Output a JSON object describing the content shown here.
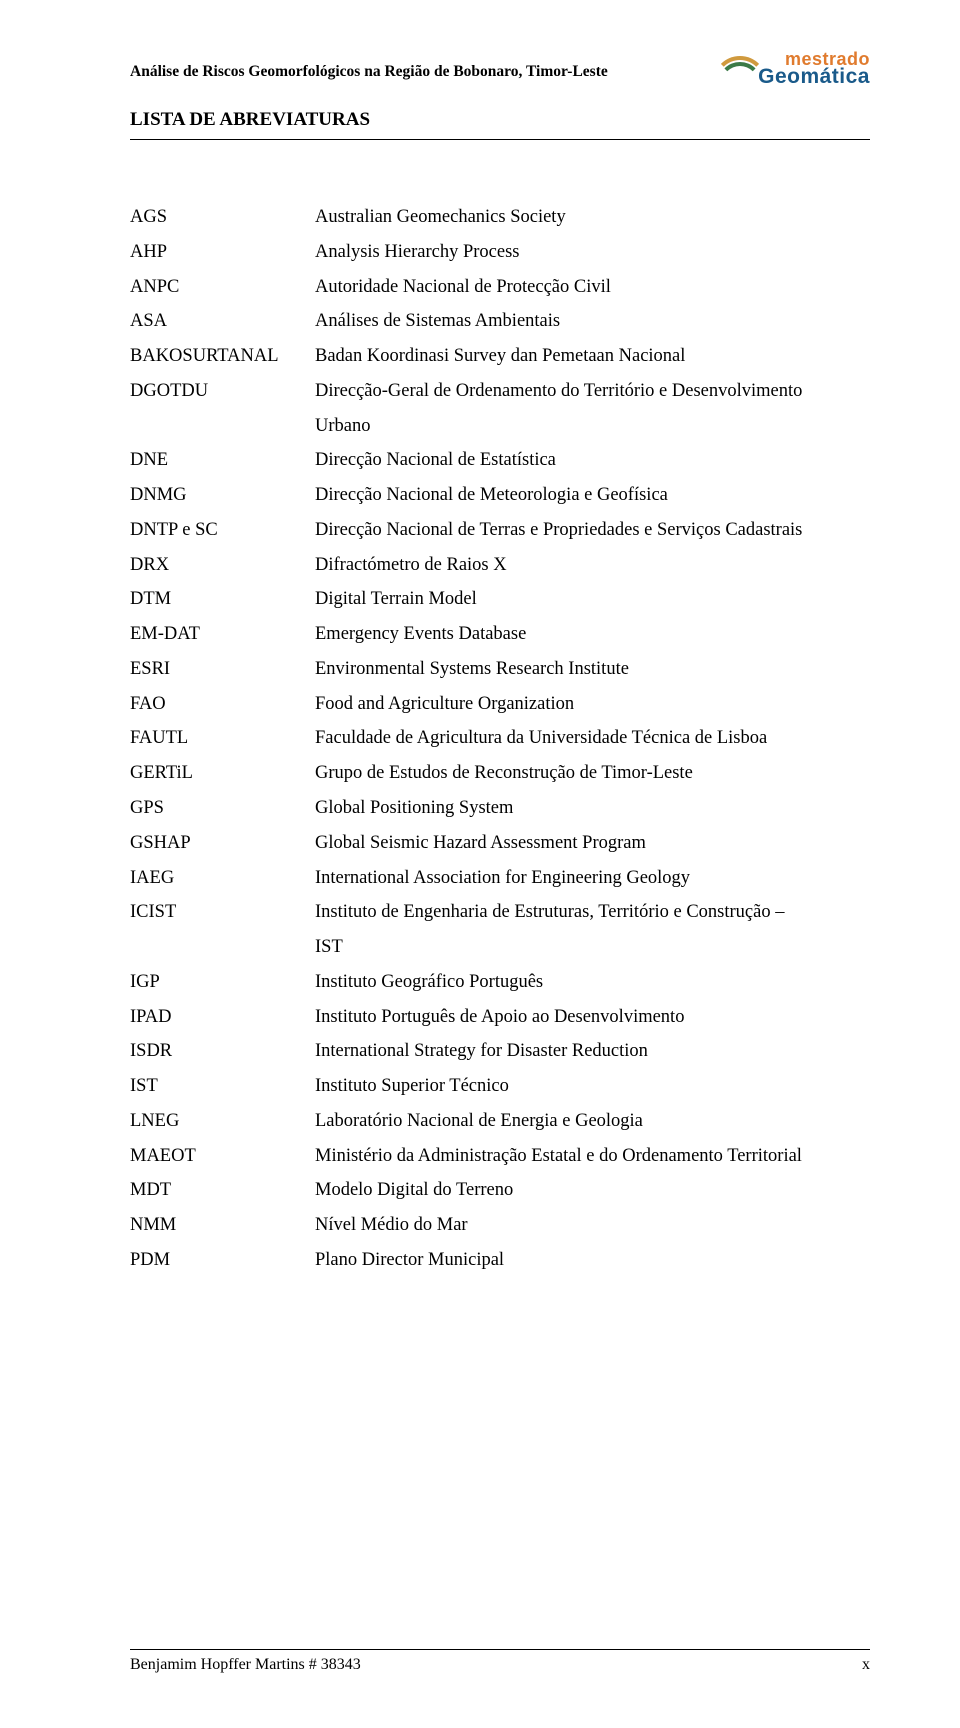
{
  "header": {
    "running_title": "Análise de Riscos Geomorfológicos na Região de Bobonaro, Timor-Leste",
    "logo_top": "mestrado",
    "logo_bottom": "Geomática"
  },
  "section_title": "LISTA DE ABREVIATURAS",
  "colors": {
    "text": "#000000",
    "background": "#ffffff",
    "logo_orange": "#e07b2e",
    "logo_blue": "#1a5a8a",
    "arc_green": "#3b7a47",
    "arc_gold": "#d09a3e"
  },
  "typography": {
    "body_font": "Times New Roman",
    "body_size_pt": 14,
    "line_height": 1.88,
    "title_size_pt": 14.5,
    "header_size_pt": 11.5
  },
  "abbreviations": [
    {
      "key": "AGS",
      "val": "Australian Geomechanics Society"
    },
    {
      "key": "AHP",
      "val": "Analysis Hierarchy Process"
    },
    {
      "key": "ANPC",
      "val": "Autoridade Nacional de Protecção Civil"
    },
    {
      "key": "ASA",
      "val": "Análises de Sistemas Ambientais"
    },
    {
      "key": "BAKOSURTANAL",
      "val": "Badan Koordinasi Survey dan Pemetaan Nacional"
    },
    {
      "key": "DGOTDU",
      "val": "Direcção-Geral de Ordenamento do Território e Desenvolvimento",
      "cont": "Urbano"
    },
    {
      "key": "DNE",
      "val": "Direcção Nacional de Estatística"
    },
    {
      "key": "DNMG",
      "val": "Direcção Nacional de Meteorologia e Geofísica"
    },
    {
      "key": "DNTP e SC",
      "val": "Direcção Nacional de Terras e Propriedades e Serviços Cadastrais"
    },
    {
      "key": "DRX",
      "val": "Difractómetro de Raios X"
    },
    {
      "key": "DTM",
      "val": "Digital Terrain Model"
    },
    {
      "key": "EM-DAT",
      "val": "Emergency Events Database"
    },
    {
      "key": "ESRI",
      "val": "Environmental Systems Research Institute"
    },
    {
      "key": "FAO",
      "val": "Food and Agriculture Organization"
    },
    {
      "key": "FAUTL",
      "val": "Faculdade de Agricultura da Universidade Técnica de Lisboa"
    },
    {
      "key": "GERTiL",
      "val": "Grupo de Estudos de Reconstrução de Timor-Leste"
    },
    {
      "key": "GPS",
      "val": "Global Positioning System"
    },
    {
      "key": "GSHAP",
      "val": "Global Seismic Hazard Assessment Program"
    },
    {
      "key": "IAEG",
      "val": "International Association for Engineering Geology"
    },
    {
      "key": "ICIST",
      "val": "Instituto de Engenharia de Estruturas, Território e Construção –",
      "cont": "IST"
    },
    {
      "key": "IGP",
      "val": "Instituto Geográfico Português"
    },
    {
      "key": "IPAD",
      "val": "Instituto Português de Apoio ao Desenvolvimento"
    },
    {
      "key": "ISDR",
      "val": "International Strategy for Disaster Reduction"
    },
    {
      "key": "IST",
      "val": "Instituto Superior Técnico"
    },
    {
      "key": "LNEG",
      "val": "Laboratório Nacional de Energia e Geologia"
    },
    {
      "key": "MAEOT",
      "val": "Ministério da Administração Estatal e do Ordenamento Territorial"
    },
    {
      "key": "MDT",
      "val": "Modelo Digital do Terreno"
    },
    {
      "key": "NMM",
      "val": "Nível Médio do Mar"
    },
    {
      "key": "PDM",
      "val": "Plano Director Municipal"
    }
  ],
  "footer": {
    "left": "Benjamim Hopffer Martins # 38343",
    "right": "x"
  }
}
